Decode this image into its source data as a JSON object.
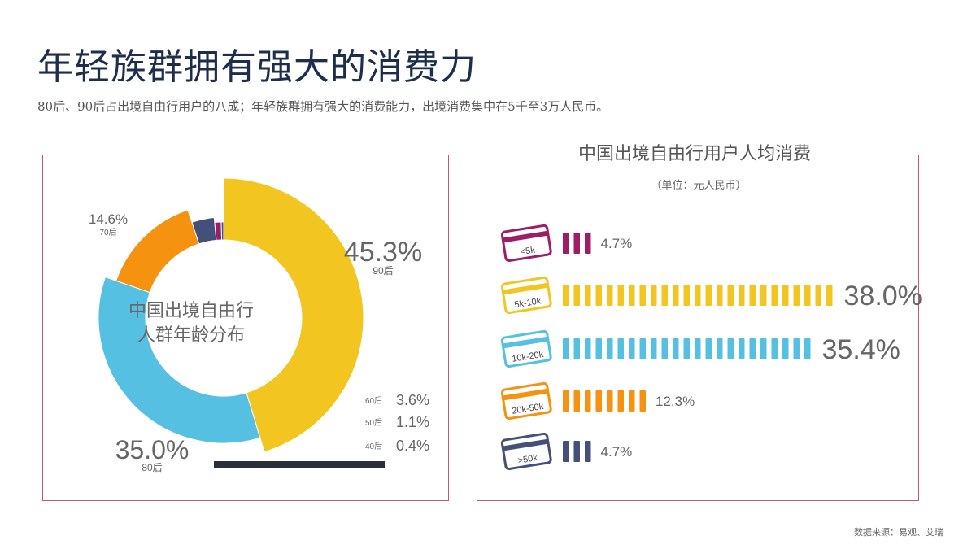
{
  "header": {
    "title": "年轻族群拥有强大的消费力",
    "subtitle": "80后、90后占出境自由行用户的八成；年轻族群拥有强大的消费能力，出境消费集中在5千至3万人民币。"
  },
  "left_panel": {
    "center_label_line1": "中国出境自由行",
    "center_label_line2": "人群年龄分布"
  },
  "right_panel": {
    "title": "中国出境自由行用户人均消费",
    "unit": "（单位：元人民币）"
  },
  "footer": {
    "source": "数据来源：易观、艾瑞"
  },
  "colors": {
    "title": "#1c2e4a",
    "border": "#c8566f",
    "yellow": "#f2c521",
    "blue": "#56c0e2",
    "orange": "#f5920f",
    "navy": "#44507a",
    "magenta": "#9e1d66",
    "dark": "#2a2f3a",
    "label": "#666666"
  },
  "chart_data": [
    {
      "type": "pie",
      "title": "中国出境自由行人群年龄分布",
      "slices": [
        {
          "name": "90后",
          "value": 45.3,
          "label": "45.3%",
          "color": "#f2c521"
        },
        {
          "name": "80后",
          "value": 35.0,
          "label": "35.0%",
          "color": "#56c0e2"
        },
        {
          "name": "70后",
          "value": 14.6,
          "label": "14.6%",
          "color": "#f5920f"
        },
        {
          "name": "60后",
          "value": 3.6,
          "label": "3.6%",
          "color": "#44507a"
        },
        {
          "name": "50后",
          "value": 1.1,
          "label": "1.1%",
          "color": "#9e1d66"
        },
        {
          "name": "40后",
          "value": 0.4,
          "label": "0.4%",
          "color": "#44507a"
        }
      ]
    },
    {
      "type": "bar",
      "title": "中国出境自由行用户人均消费",
      "unit": "元人民币",
      "categories": [
        "<5k",
        "5k-10k",
        "10k-20k",
        "20k-50k",
        ">50k"
      ],
      "values": [
        4.7,
        38.0,
        35.4,
        12.3,
        4.7
      ],
      "labels": [
        "4.7%",
        "38.0%",
        "35.4%",
        "12.3%",
        "4.7%"
      ],
      "colors": [
        "#9e1d66",
        "#f2c521",
        "#56c0e2",
        "#f5920f",
        "#44507a"
      ]
    }
  ]
}
